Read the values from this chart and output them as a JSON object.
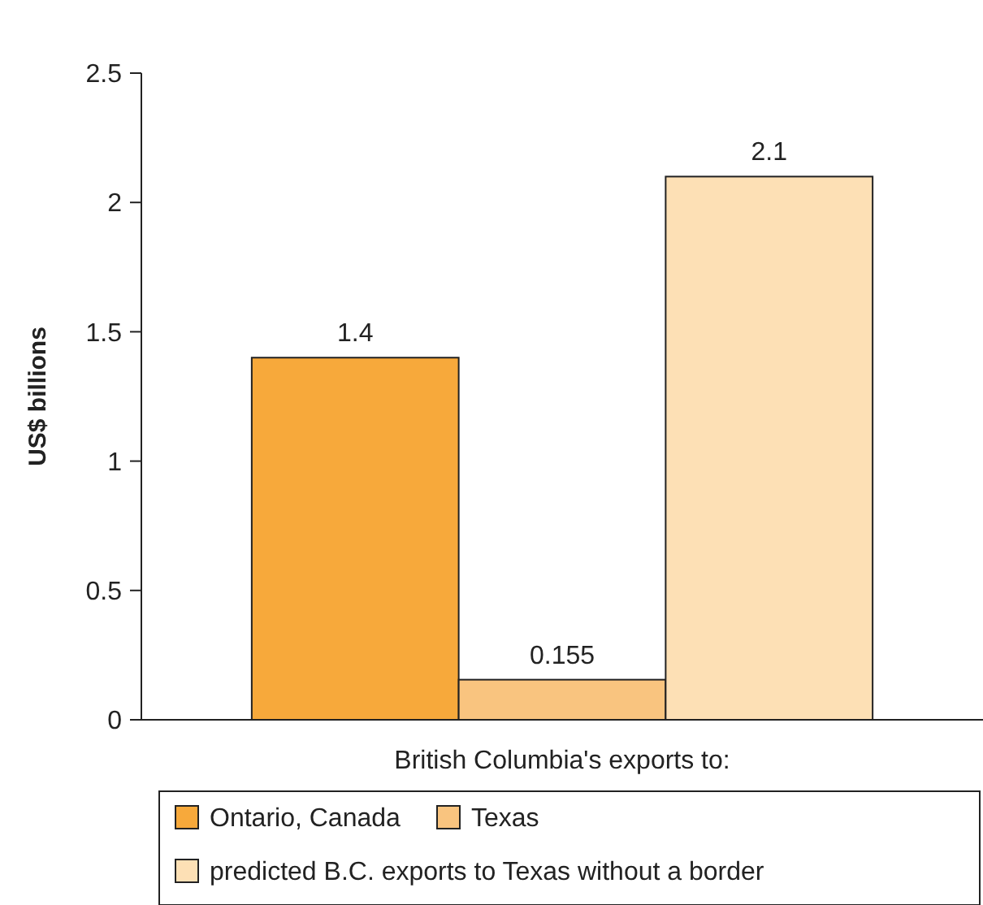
{
  "chart_data": {
    "type": "bar",
    "ylabel": "US$ billions",
    "xlabel": "British Columbia's exports to:",
    "categories": [
      null
    ],
    "series": [
      {
        "name": "Ontario, Canada",
        "color": "#f7a93b",
        "values": [
          1.4
        ]
      },
      {
        "name": "Texas",
        "color": "#f9c47f",
        "values": [
          0.155
        ]
      },
      {
        "name": "predicted B.C. exports to Texas without a border",
        "color": "#fde0b5",
        "values": [
          2.1
        ]
      }
    ],
    "ylim": [
      0,
      2.5
    ],
    "yticks": [
      0,
      0.5,
      1,
      1.5,
      2,
      2.5
    ],
    "data_labels": true,
    "legend": "bottom",
    "grid": false
  }
}
